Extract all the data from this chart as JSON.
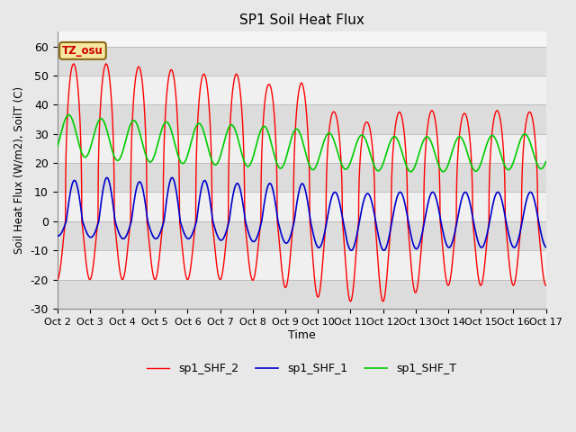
{
  "title": "SP1 Soil Heat Flux",
  "xlabel": "Time",
  "ylabel": "Soil Heat Flux (W/m2), SoilT (C)",
  "ylim": [
    -30,
    65
  ],
  "yticks": [
    -30,
    -20,
    -10,
    0,
    10,
    20,
    30,
    40,
    50,
    60
  ],
  "n_days": 15,
  "x_tick_labels": [
    "Oct 2",
    "Oct 3",
    "Oct 4",
    "Oct 5",
    "Oct 6",
    "Oct 7",
    "Oct 8",
    "Oct 9",
    "Oct 10",
    "Oct 11",
    "Oct 12",
    "Oct 13",
    "Oct 14",
    "Oct 15",
    "Oct 16",
    "Oct 17"
  ],
  "annotation_text": "TZ_osu",
  "annotation_color": "#cc0000",
  "annotation_bg": "#f5e6a0",
  "annotation_border": "#8b6914",
  "line_colors": {
    "sp1_SHF_2": "#ff0000",
    "sp1_SHF_1": "#0000cc",
    "sp1_SHF_T": "#00cc00"
  },
  "legend_labels": [
    "sp1_SHF_2",
    "sp1_SHF_1",
    "sp1_SHF_T"
  ],
  "background_color": "#e8e8e8",
  "plot_bg": "#f5f5f5",
  "band_light": "#f5f5f5",
  "band_dark": "#dcdcdc",
  "figsize": [
    6.4,
    4.8
  ],
  "dpi": 100
}
